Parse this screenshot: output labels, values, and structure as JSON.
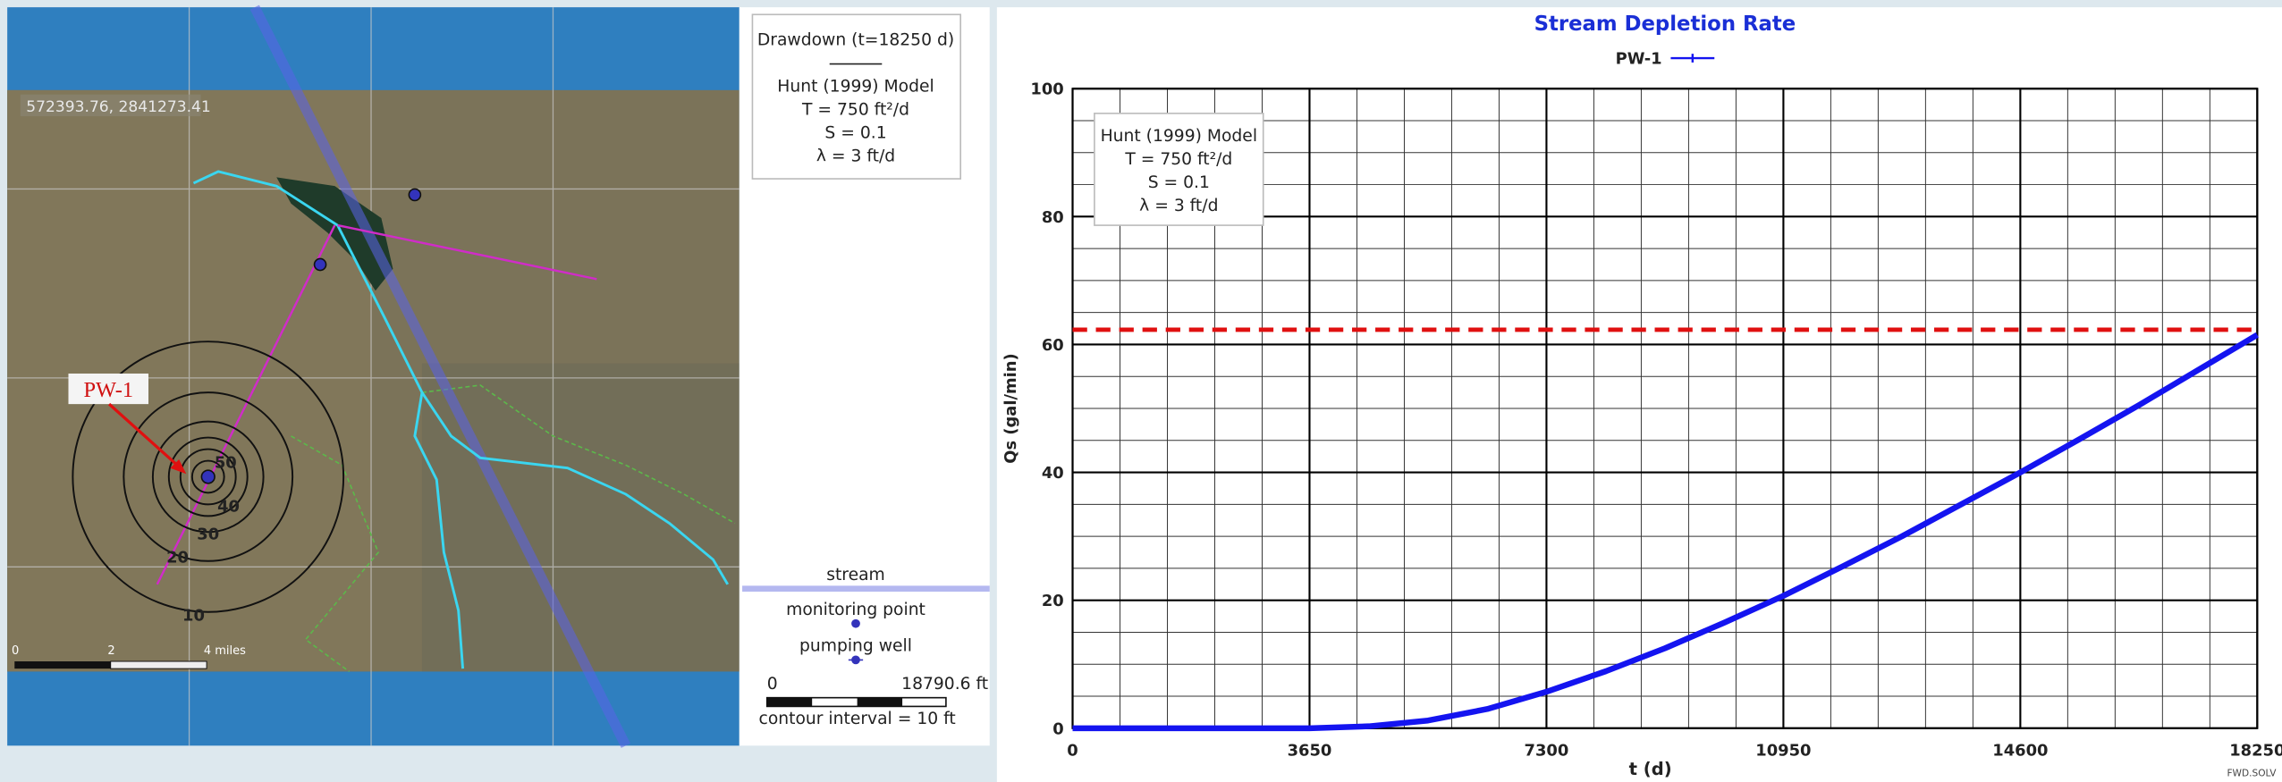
{
  "map_panel": {
    "coordinates": "572393.76, 2841273.41",
    "well_label": "PW-1",
    "contour_labels": [
      10,
      20,
      30,
      40,
      50
    ],
    "scale_labels": [
      "0",
      "2",
      "4 miles"
    ]
  },
  "map_legend": {
    "title": "Drawdown (t=18250 d)",
    "model": "Hunt (1999) Model",
    "params": [
      "T = 750 ft²/d",
      "S = 0.1",
      "λ = 3 ft/d"
    ],
    "stream": "stream",
    "monitoring_point": "monitoring point",
    "pumping_well": "pumping well",
    "scale_start": "0",
    "scale_end": "18790.6 ft",
    "contour_interval": "contour interval = 10 ft"
  },
  "chart_data": {
    "type": "line",
    "title": "Stream Depletion Rate",
    "x_label": "t (d)",
    "y_label": "Qs (gal/min)",
    "x": [
      0,
      1825,
      3650,
      4562.5,
      5475,
      6387.5,
      7300,
      8212.5,
      9125,
      10037.5,
      10950,
      11862.5,
      12775,
      13687.5,
      14600,
      15512.5,
      16425,
      17337.5,
      18250
    ],
    "series": [
      {
        "name": "PW-1",
        "color": "#1414f0",
        "values": [
          0,
          0,
          0,
          0.3,
          1.2,
          3,
          5.7,
          8.9,
          12.5,
          16.5,
          20.7,
          25.3,
          30,
          35,
          40,
          45.2,
          50.5,
          56,
          61.5
        ]
      }
    ],
    "xlim": [
      0,
      18250
    ],
    "ylim": [
      0,
      100
    ],
    "xticks": [
      0,
      3650,
      7300,
      10950,
      14600,
      18250
    ],
    "yticks": [
      0,
      20,
      40,
      60,
      80,
      100
    ],
    "grid": true,
    "annotation": [
      "Hunt (1999) Model",
      "T = 750 ft²/d",
      "S = 0.1",
      "λ = 3 ft/d"
    ],
    "reference_line": {
      "value": 62.3,
      "color": "#e01010"
    },
    "footer": "FWD.SOLV"
  }
}
